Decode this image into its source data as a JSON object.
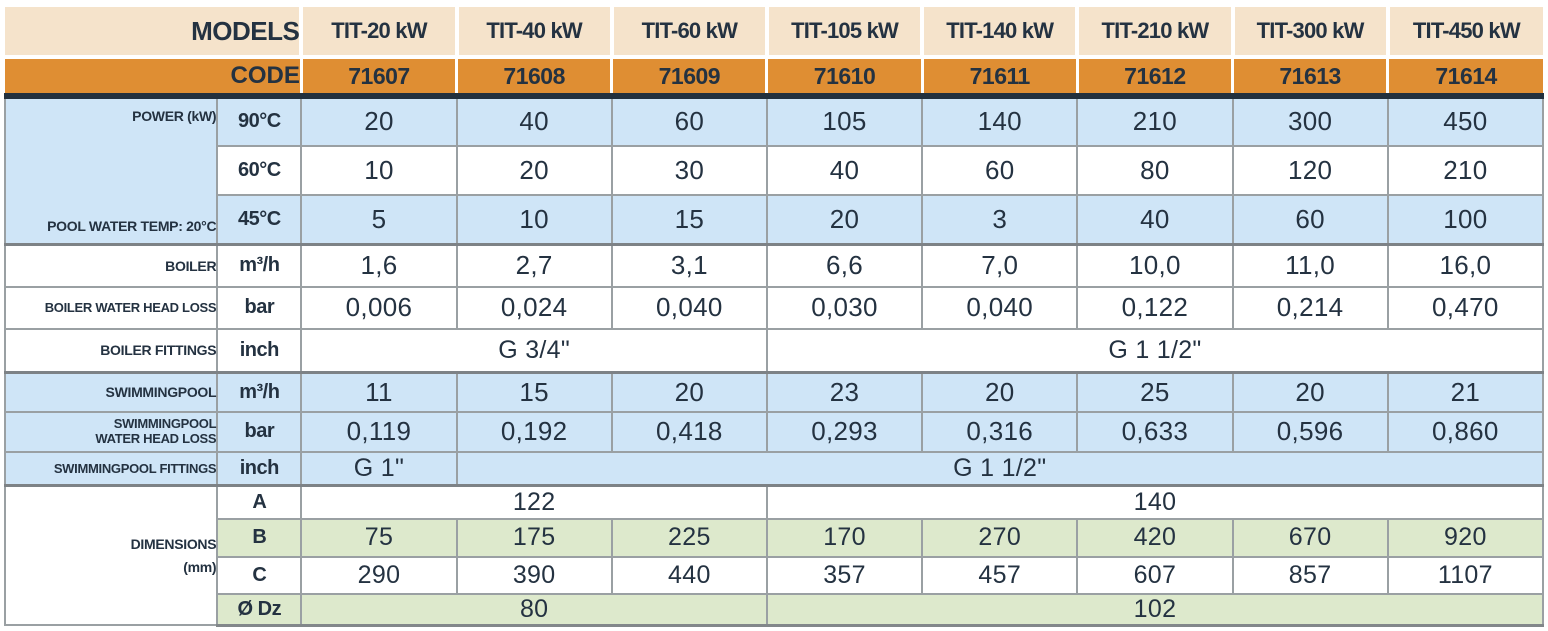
{
  "title_row": {
    "models_label": "MODELS",
    "models": [
      "TIT-20 kW",
      "TIT-40 kW",
      "TIT-60 kW",
      "TIT-105 kW",
      "TIT-140 kW",
      "TIT-210 kW",
      "TIT-300 kW",
      "TIT-450 kW"
    ]
  },
  "code_row": {
    "code_label": "CODE",
    "codes": [
      "71607",
      "71608",
      "71609",
      "71610",
      "71611",
      "71612",
      "71613",
      "71614"
    ]
  },
  "sections": {
    "power": {
      "label_top": "POWER (kW)",
      "label_bottom": "POOL WATER TEMP: 20°C",
      "rows": [
        {
          "sub": "90°C",
          "values": [
            "20",
            "40",
            "60",
            "105",
            "140",
            "210",
            "300",
            "450"
          ]
        },
        {
          "sub": "60°C",
          "values": [
            "10",
            "20",
            "30",
            "40",
            "60",
            "80",
            "120",
            "210"
          ]
        },
        {
          "sub": "45°C",
          "values": [
            "5",
            "10",
            "15",
            "20",
            "3",
            "40",
            "60",
            "100"
          ]
        }
      ]
    },
    "boiler": {
      "flow": {
        "label": "BOILER",
        "unit": "m³/h",
        "values": [
          "1,6",
          "2,7",
          "3,1",
          "6,6",
          "7,0",
          "10,0",
          "11,0",
          "16,0"
        ]
      },
      "head_loss": {
        "label": "BOILER WATER HEAD LOSS",
        "unit": "bar",
        "values": [
          "0,006",
          "0,024",
          "0,040",
          "0,030",
          "0,040",
          "0,122",
          "0,214",
          "0,470"
        ]
      },
      "fittings": {
        "label": "BOILER FITTINGS",
        "unit": "inch",
        "spans": [
          {
            "text": "G 3/4\"",
            "cols": 3
          },
          {
            "text": "G 1 1/2\"",
            "cols": 5
          }
        ]
      }
    },
    "swimmingpool": {
      "flow": {
        "label": "SWIMMINGPOOL",
        "unit": "m³/h",
        "values": [
          "11",
          "15",
          "20",
          "23",
          "20",
          "25",
          "20",
          "21"
        ]
      },
      "head_loss": {
        "label_line1": "SWIMMINGPOOL",
        "label_line2": "WATER HEAD LOSS",
        "unit": "bar",
        "values": [
          "0,119",
          "0,192",
          "0,418",
          "0,293",
          "0,316",
          "0,633",
          "0,596",
          "0,860"
        ]
      },
      "fittings": {
        "label": "SWIMMINGPOOL FITTINGS",
        "unit": "inch",
        "spans": [
          {
            "text": "G 1\"",
            "cols": 1
          },
          {
            "text": "G 1 1/2\"",
            "cols": 7
          }
        ]
      }
    },
    "dimensions": {
      "label_line1": "DIMENSIONS",
      "label_line2": "(mm)",
      "rows": [
        {
          "sub": "A",
          "spans": [
            {
              "text": "122",
              "cols": 3
            },
            {
              "text": "140",
              "cols": 5
            }
          ]
        },
        {
          "sub": "B",
          "values": [
            "75",
            "175",
            "225",
            "170",
            "270",
            "420",
            "670",
            "920"
          ]
        },
        {
          "sub": "C",
          "values": [
            "290",
            "390",
            "440",
            "357",
            "457",
            "607",
            "857",
            "1107"
          ]
        },
        {
          "sub": "Ø Dz",
          "spans": [
            {
              "text": "80",
              "cols": 3
            },
            {
              "text": "102",
              "cols": 5
            }
          ]
        }
      ]
    }
  },
  "colors": {
    "header_tan": "#f5e3cb",
    "code_orange": "#df8e33",
    "light_blue": "#cfe5f7",
    "light_green": "#dde9cc",
    "dark_navy": "#22303e",
    "grid_gray": "#9aa0a3",
    "value_text": "#243241",
    "code_text": "#fdfbf6"
  }
}
